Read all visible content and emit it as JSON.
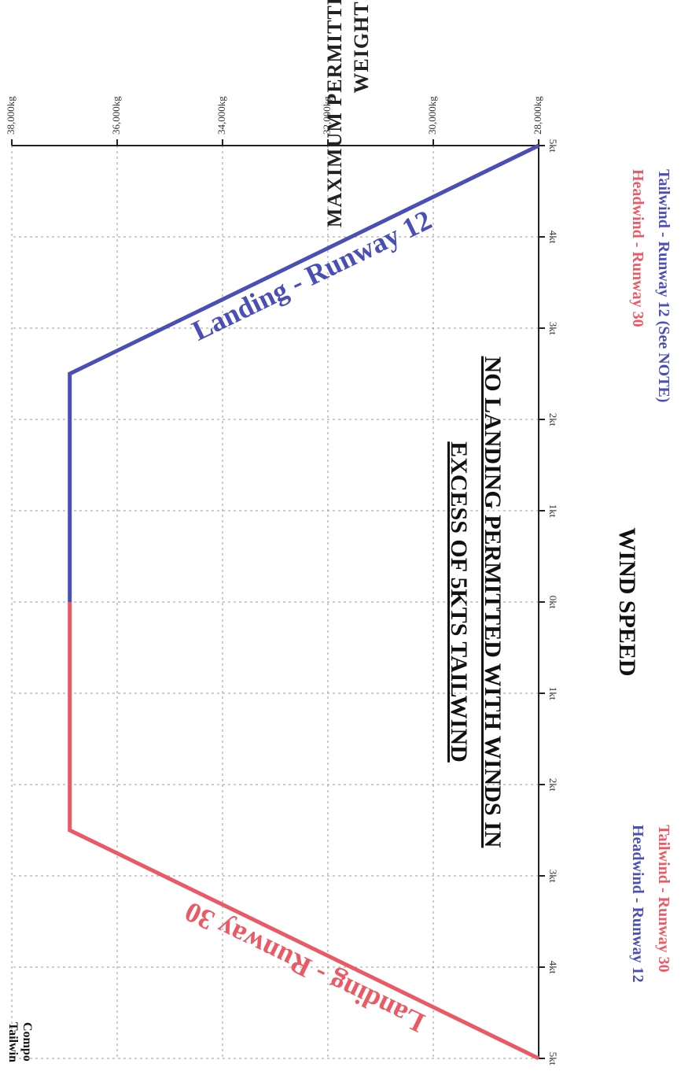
{
  "chart_data": {
    "type": "line",
    "title": "",
    "ylabel_lines": [
      "MAXIMUM PERMITTED LANDING",
      "WEIGHT"
    ],
    "xlabel": "WIND SPEED",
    "ylim": [
      28000,
      38000
    ],
    "yticks": [
      {
        "value": 28000,
        "label": "28,000kg"
      },
      {
        "value": 30000,
        "label": "30,000kg"
      },
      {
        "value": 32000,
        "label": "32,000kg"
      },
      {
        "value": 34000,
        "label": "34,000kg"
      },
      {
        "value": 36000,
        "label": "36,000kg"
      },
      {
        "value": 38000,
        "label": "38,000kg"
      }
    ],
    "xlim": [
      -5,
      5
    ],
    "xticks": [
      {
        "value": -5,
        "label": "5kt"
      },
      {
        "value": -4,
        "label": "4kt"
      },
      {
        "value": -3,
        "label": "3kt"
      },
      {
        "value": -2,
        "label": "2kt"
      },
      {
        "value": -1,
        "label": "1kt"
      },
      {
        "value": 0,
        "label": "0kt"
      },
      {
        "value": 1,
        "label": "1kt"
      },
      {
        "value": 2,
        "label": "2kt"
      },
      {
        "value": 3,
        "label": "3kt"
      },
      {
        "value": 4,
        "label": "4kt"
      },
      {
        "value": 5,
        "label": "5kt"
      }
    ],
    "grid": true,
    "series": [
      {
        "name": "Landing - Runway 12",
        "color": "#4a4fb5",
        "x": [
          -5,
          -2.5,
          0
        ],
        "y": [
          28000,
          36900,
          36900
        ]
      },
      {
        "name": "Landing - Runway 30",
        "color": "#ea5a64",
        "x": [
          0,
          2.5,
          5
        ],
        "y": [
          36900,
          36900,
          28000
        ]
      }
    ],
    "annotations": {
      "notice_lines": [
        "NO LANDING PERMITTED WITH WINDS  IN",
        "EXCESS OF 5KTS TAILWIND"
      ],
      "corner_note_lines": [
        "Tailwin",
        "Compo"
      ]
    },
    "legend_left": [
      {
        "text": "Headwind - Runway 30",
        "color": "#ea5a64"
      },
      {
        "text": "Tailwind - Runway 12 (See NOTE)",
        "color": "#4a4fb5"
      }
    ],
    "legend_right": [
      {
        "text": "Headwind - Runway 12",
        "color": "#4a4fb5"
      },
      {
        "text": "Tailwind - Runway 30",
        "color": "#ea5a64"
      }
    ]
  }
}
